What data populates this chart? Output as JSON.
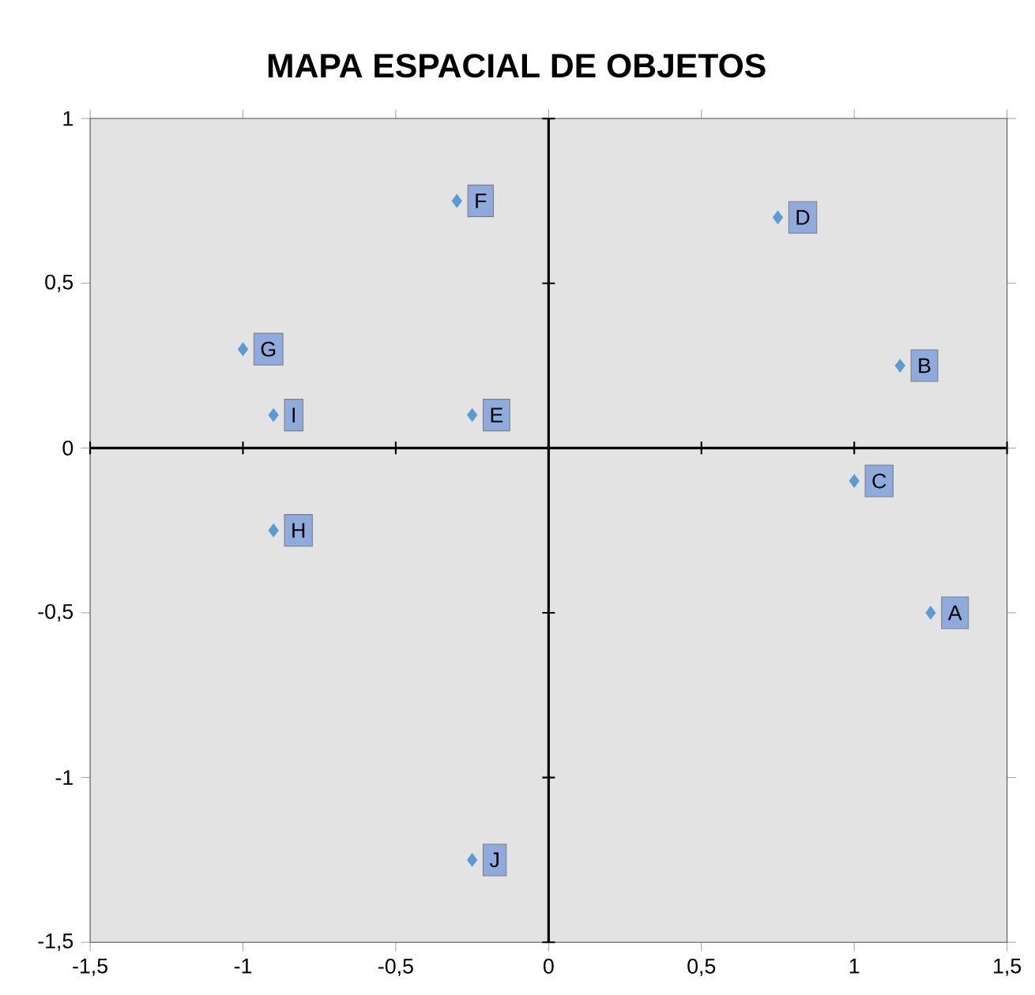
{
  "chart_data": {
    "type": "scatter",
    "title": "MAPA ESPACIAL DE OBJETOS",
    "x": [
      1.25,
      1.15,
      1.0,
      0.75,
      -0.25,
      -0.3,
      -1.0,
      -0.9,
      -0.9,
      -0.25
    ],
    "values": [
      -0.5,
      0.25,
      -0.1,
      0.7,
      0.1,
      0.75,
      0.3,
      -0.25,
      0.1,
      -1.25
    ],
    "color": "#5b9bd5",
    "marker": "diamond",
    "xlim": [
      -1.5,
      1.5
    ],
    "ylim": [
      -1.5,
      1
    ],
    "xticks": [
      {
        "value": -1.5,
        "label": "-1,5"
      },
      {
        "value": -1,
        "label": "-1"
      },
      {
        "value": -0.5,
        "label": "-0,5"
      },
      {
        "value": 0,
        "label": "0"
      },
      {
        "value": 0.5,
        "label": "0,5"
      },
      {
        "value": 1,
        "label": "1"
      },
      {
        "value": 1.5,
        "label": "1,5"
      }
    ],
    "yticks": [
      {
        "value": -1.5,
        "label": "-1,5"
      },
      {
        "value": -1,
        "label": "-1"
      },
      {
        "value": -0.5,
        "label": "-0,5"
      },
      {
        "value": 0,
        "label": "0"
      },
      {
        "value": 0.5,
        "label": "0,5"
      },
      {
        "value": 1,
        "label": "1"
      }
    ],
    "annotations": [
      {
        "text": "A",
        "x": 1.25,
        "y": -0.5
      },
      {
        "text": "B",
        "x": 1.15,
        "y": 0.25
      },
      {
        "text": "C",
        "x": 1.0,
        "y": -0.1
      },
      {
        "text": "D",
        "x": 0.75,
        "y": 0.7
      },
      {
        "text": "E",
        "x": -0.25,
        "y": 0.1
      },
      {
        "text": "F",
        "x": -0.3,
        "y": 0.75
      },
      {
        "text": "G",
        "x": -1.0,
        "y": 0.3
      },
      {
        "text": "H",
        "x": -0.9,
        "y": -0.25
      },
      {
        "text": "I",
        "x": -0.9,
        "y": 0.1
      },
      {
        "text": "J",
        "x": -0.25,
        "y": -1.25
      }
    ]
  }
}
